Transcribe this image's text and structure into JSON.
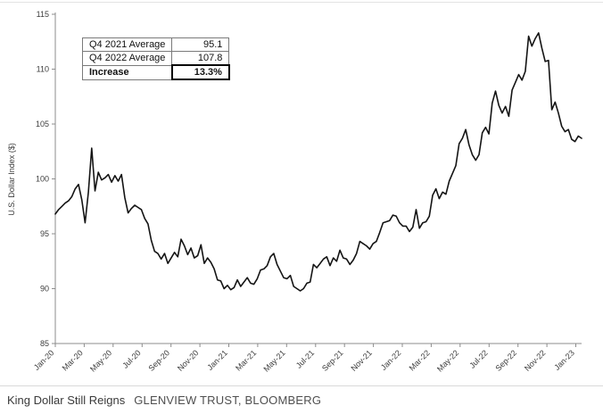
{
  "chart_data": {
    "type": "line",
    "title": "",
    "xlabel": "",
    "ylabel": "U.S. Dollar Index ($)",
    "ylim": [
      85,
      115
    ],
    "yticks": [
      85,
      90,
      95,
      100,
      105,
      110,
      115
    ],
    "xtick_labels": [
      "Jan-20",
      "Mar-20",
      "May-20",
      "Jul-20",
      "Sep-20",
      "Nov-20",
      "Jan-21",
      "Mar-21",
      "May-21",
      "Jul-21",
      "Sep-21",
      "Nov-21",
      "Jan-22",
      "Mar-22",
      "May-22",
      "Jul-22",
      "Sep-22",
      "Nov-22",
      "Jan-23"
    ],
    "line_color": "#141414",
    "grid": false,
    "legend_position": "upper-left-box",
    "values": [
      96.8,
      97.2,
      97.5,
      97.8,
      98.0,
      98.4,
      99.1,
      99.5,
      98.1,
      96.0,
      98.8,
      102.8,
      98.9,
      100.6,
      99.9,
      100.1,
      100.4,
      99.7,
      100.3,
      99.8,
      100.4,
      98.3,
      96.9,
      97.3,
      97.6,
      97.4,
      97.2,
      96.4,
      95.9,
      94.4,
      93.4,
      93.2,
      92.7,
      93.2,
      92.3,
      92.8,
      93.3,
      92.9,
      94.5,
      93.9,
      93.1,
      93.7,
      92.8,
      93.0,
      94.0,
      92.3,
      92.8,
      92.4,
      91.8,
      90.8,
      90.7,
      90.0,
      90.3,
      89.9,
      90.1,
      90.8,
      90.2,
      90.6,
      91.0,
      90.5,
      90.4,
      90.9,
      91.7,
      91.8,
      92.1,
      92.9,
      93.2,
      92.2,
      91.6,
      91.0,
      90.9,
      91.2,
      90.2,
      90.0,
      89.8,
      90.0,
      90.5,
      90.6,
      92.2,
      91.9,
      92.3,
      92.7,
      92.9,
      92.1,
      92.8,
      92.5,
      93.5,
      92.8,
      92.7,
      92.2,
      92.6,
      93.2,
      94.3,
      94.1,
      93.9,
      93.6,
      94.1,
      94.3,
      95.1,
      96.0,
      96.1,
      96.2,
      96.7,
      96.6,
      96.0,
      95.7,
      95.7,
      95.2,
      95.6,
      97.2,
      95.5,
      96.0,
      96.1,
      96.6,
      98.5,
      99.1,
      98.2,
      98.8,
      98.6,
      99.8,
      100.5,
      101.2,
      103.2,
      103.7,
      104.5,
      103.1,
      102.2,
      101.7,
      102.2,
      104.2,
      104.7,
      104.1,
      106.9,
      108.0,
      106.7,
      106.0,
      106.6,
      105.7,
      108.1,
      108.8,
      109.5,
      109.0,
      109.8,
      113.0,
      112.1,
      112.8,
      113.3,
      111.9,
      110.7,
      110.8,
      106.3,
      107.0,
      106.0,
      104.8,
      104.3,
      104.5,
      103.6,
      103.4,
      103.9,
      103.7
    ],
    "legend_table": {
      "rows": [
        {
          "label": "Q4 2021 Average",
          "value": "95.1"
        },
        {
          "label": "Q4 2022 Average",
          "value": "107.8"
        },
        {
          "label": "Increase",
          "value": "13.3%"
        }
      ]
    }
  },
  "caption": {
    "title": "King Dollar Still Reigns",
    "source": "GLENVIEW TRUST, BLOOMBERG"
  }
}
